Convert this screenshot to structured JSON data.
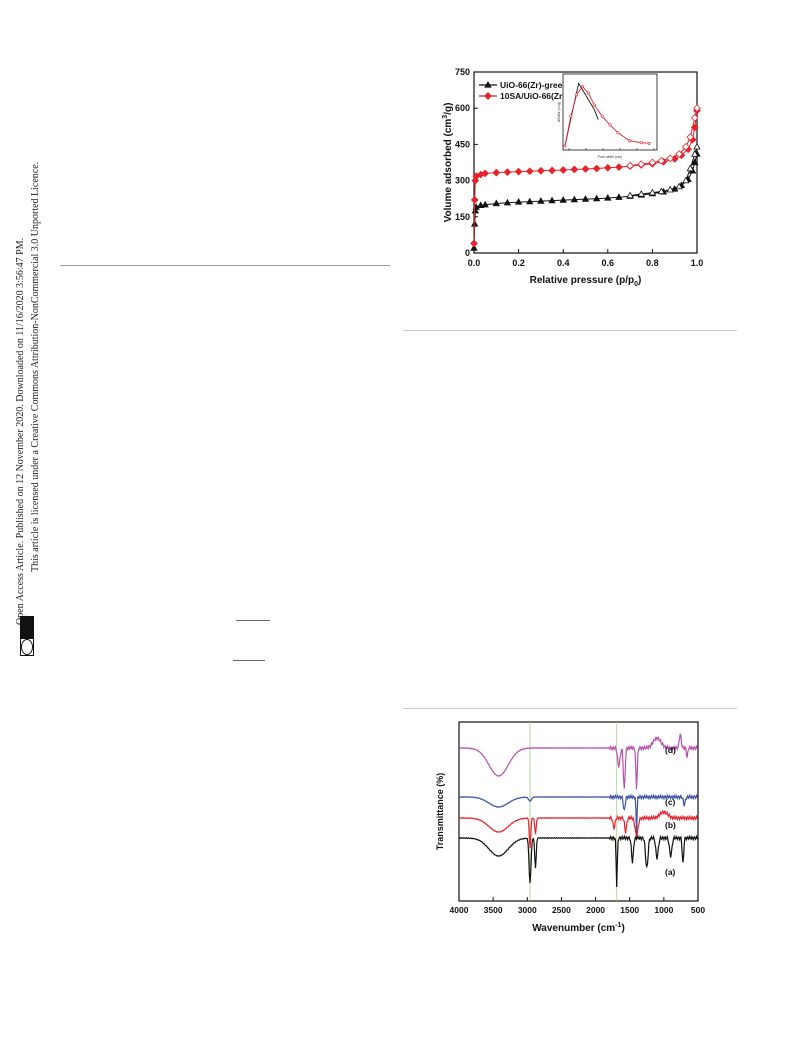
{
  "side_text": {
    "line1": "Open Access Article. Published on 12 November 2020. Downloaded on 11/16/2020 3:56:47 PM.",
    "line2": "This article is licensed under a Creative Commons Attribution-NonCommercial 3.0 Unported Licence.",
    "badge": "BY-NC",
    "cc": "cc"
  },
  "chart_data": [
    {
      "type": "line",
      "xlabel": "Relative pressure (p/p",
      "xlabel_sub": "0",
      "xlabel_end": ")",
      "ylabel": "Volume adsorbed (cm",
      "ylabel_sup": "3",
      "ylabel_end": "/g)",
      "xlim": [
        0.0,
        1.0
      ],
      "ylim": [
        0,
        750
      ],
      "x_ticks": [
        "0.0",
        "0.2",
        "0.4",
        "0.6",
        "0.8",
        "1.0"
      ],
      "x_tick_values": [
        0.0,
        0.2,
        0.4,
        0.6,
        0.8,
        1.0
      ],
      "y_ticks": [
        "0",
        "150",
        "300",
        "450",
        "600",
        "750"
      ],
      "y_tick_values": [
        0,
        150,
        300,
        450,
        600,
        750
      ],
      "legend": [
        "UiO-66(Zr)-green",
        "10SA/UiO-66(Zr)"
      ],
      "legend_position": "top-left",
      "series": [
        {
          "name": "UiO-66(Zr)-green",
          "color": "#111111",
          "marker": "triangle",
          "adsorption": [
            [
              0.0,
              20
            ],
            [
              0.003,
              120
            ],
            [
              0.006,
              175
            ],
            [
              0.01,
              190
            ],
            [
              0.03,
              197
            ],
            [
              0.05,
              200
            ],
            [
              0.1,
              205
            ],
            [
              0.15,
              208
            ],
            [
              0.2,
              211
            ],
            [
              0.25,
              213
            ],
            [
              0.3,
              215
            ],
            [
              0.35,
              217
            ],
            [
              0.4,
              219
            ],
            [
              0.45,
              221
            ],
            [
              0.5,
              223
            ],
            [
              0.55,
              225
            ],
            [
              0.6,
              228
            ],
            [
              0.65,
              231
            ],
            [
              0.7,
              235
            ],
            [
              0.75,
              240
            ],
            [
              0.8,
              246
            ],
            [
              0.85,
              253
            ],
            [
              0.9,
              265
            ],
            [
              0.93,
              280
            ],
            [
              0.96,
              305
            ],
            [
              0.98,
              340
            ],
            [
              0.99,
              375
            ],
            [
              1.0,
              410
            ]
          ],
          "desorption": [
            [
              1.0,
              440
            ],
            [
              0.99,
              410
            ],
            [
              0.97,
              350
            ],
            [
              0.95,
              300
            ],
            [
              0.92,
              275
            ],
            [
              0.88,
              262
            ],
            [
              0.84,
              255
            ],
            [
              0.8,
              250
            ],
            [
              0.75,
              244
            ],
            [
              0.7,
              238
            ]
          ]
        },
        {
          "name": "10SA/UiO-66(Zr)",
          "color": "#e8212b",
          "marker": "diamond",
          "adsorption": [
            [
              0.0,
              40
            ],
            [
              0.003,
              220
            ],
            [
              0.006,
              300
            ],
            [
              0.01,
              318
            ],
            [
              0.03,
              325
            ],
            [
              0.05,
              330
            ],
            [
              0.1,
              333
            ],
            [
              0.15,
              335
            ],
            [
              0.2,
              337
            ],
            [
              0.25,
              339
            ],
            [
              0.3,
              341
            ],
            [
              0.35,
              342
            ],
            [
              0.4,
              344
            ],
            [
              0.45,
              346
            ],
            [
              0.5,
              348
            ],
            [
              0.55,
              350
            ],
            [
              0.6,
              353
            ],
            [
              0.65,
              356
            ],
            [
              0.7,
              360
            ],
            [
              0.75,
              365
            ],
            [
              0.8,
              370
            ],
            [
              0.85,
              378
            ],
            [
              0.9,
              390
            ],
            [
              0.93,
              405
            ],
            [
              0.96,
              430
            ],
            [
              0.98,
              470
            ],
            [
              0.99,
              520
            ],
            [
              1.0,
              590
            ]
          ],
          "desorption": [
            [
              1.0,
              600
            ],
            [
              0.99,
              560
            ],
            [
              0.97,
              480
            ],
            [
              0.95,
              440
            ],
            [
              0.92,
              410
            ],
            [
              0.88,
              392
            ],
            [
              0.84,
              382
            ],
            [
              0.8,
              375
            ],
            [
              0.75,
              368
            ],
            [
              0.7,
              362
            ]
          ]
        }
      ],
      "inset": {
        "xlabel": "Pore width (nm)",
        "ylabel": "dV/dW (cc/g)"
      }
    },
    {
      "type": "line",
      "xlabel": "Wavenumber (cm",
      "xlabel_sup": "-1",
      "xlabel_end": ")",
      "ylabel": "Transmittance (%)",
      "xlim": [
        4000,
        500
      ],
      "x_ticks": [
        "4000",
        "3500",
        "3000",
        "2500",
        "2000",
        "1500",
        "1000",
        "500"
      ],
      "x_tick_values": [
        4000,
        3500,
        3000,
        2500,
        2000,
        1500,
        1000,
        500
      ],
      "vertical_guides": [
        2960,
        1690
      ],
      "series": [
        {
          "name": "(d)",
          "color": "#b84fae"
        },
        {
          "name": "(c)",
          "color": "#3a54a8"
        },
        {
          "name": "(b)",
          "color": "#e8212b"
        },
        {
          "name": "(a)",
          "color": "#111111"
        }
      ]
    }
  ]
}
